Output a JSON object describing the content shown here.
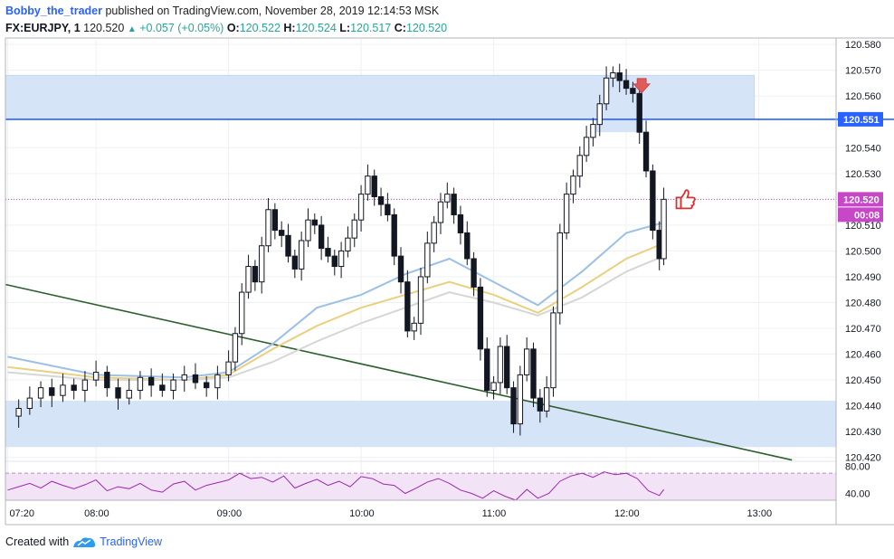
{
  "header": {
    "author": "Bobby_the_trader",
    "published_text": "published on TradingView.com, November 28, 2019 12:14:53 MSK",
    "symbol": "FX:EURJPY, 1",
    "last": "120.520",
    "change": "+0.057 (+0.05%)",
    "o_label": "O:",
    "o_value": "120.522",
    "h_label": "H:",
    "h_value": "120.524",
    "l_label": "L:",
    "l_value": "120.517",
    "c_label": "C:",
    "c_value": "120.520"
  },
  "footer": {
    "created_with": "Created with",
    "brand": "TradingView"
  },
  "chart_data": {
    "type": "candlestick",
    "price_axis": {
      "ticks": [
        "120.580",
        "120.570",
        "120.560",
        "120.551",
        "120.540",
        "120.530",
        "120.520",
        "120.510",
        "120.500",
        "120.490",
        "120.480",
        "120.470",
        "120.460",
        "120.450",
        "120.440",
        "120.430",
        "120.420"
      ],
      "ylim": [
        120.4185,
        120.5825
      ]
    },
    "time_axis": {
      "ticks": [
        "07:20",
        "08:00",
        "09:00",
        "10:00",
        "11:00",
        "12:00",
        "13:00"
      ],
      "tick_minutes": [
        440,
        480,
        540,
        600,
        660,
        720,
        780
      ],
      "xlim_minutes": [
        439,
        815
      ]
    },
    "price_labels": [
      {
        "text": "120.551",
        "color": "#2962ff"
      },
      {
        "text": "120.520",
        "color": "#c846c8"
      },
      {
        "text": "00:08",
        "color": "#c846c8"
      }
    ],
    "zones": [
      {
        "name": "supply",
        "from": 120.551,
        "to": 120.568,
        "color": "#d6e4f8"
      },
      {
        "name": "demand",
        "from": 120.424,
        "to": 120.442,
        "color": "#d6e4f8"
      }
    ],
    "hline": {
      "price": 120.551,
      "color": "#2962ff"
    },
    "current_price": 120.52,
    "trendline": {
      "points": [
        [
          439,
          120.487
        ],
        [
          795,
          120.419
        ]
      ],
      "color": "#2e5e2e"
    },
    "close_series": [
      [
        440,
        120.436
      ],
      [
        445,
        120.439
      ],
      [
        450,
        120.443
      ],
      [
        455,
        120.447
      ],
      [
        460,
        120.444
      ],
      [
        465,
        120.448
      ],
      [
        470,
        120.446
      ],
      [
        475,
        120.45
      ],
      [
        480,
        120.453
      ],
      [
        485,
        120.447
      ],
      [
        490,
        120.443
      ],
      [
        495,
        120.446
      ],
      [
        500,
        120.451
      ],
      [
        505,
        120.448
      ],
      [
        510,
        120.446
      ],
      [
        515,
        120.45
      ],
      [
        520,
        120.452
      ],
      [
        525,
        120.449
      ],
      [
        530,
        120.447
      ],
      [
        535,
        120.452
      ],
      [
        540,
        120.457
      ],
      [
        543,
        120.468
      ],
      [
        546,
        120.484
      ],
      [
        549,
        120.494
      ],
      [
        552,
        120.488
      ],
      [
        555,
        120.502
      ],
      [
        558,
        120.516
      ],
      [
        561,
        120.508
      ],
      [
        564,
        120.506
      ],
      [
        567,
        120.498
      ],
      [
        570,
        120.493
      ],
      [
        573,
        120.504
      ],
      [
        576,
        120.512
      ],
      [
        579,
        120.51
      ],
      [
        582,
        120.501
      ],
      [
        585,
        120.498
      ],
      [
        588,
        120.494
      ],
      [
        591,
        120.5
      ],
      [
        594,
        120.505
      ],
      [
        597,
        120.512
      ],
      [
        600,
        120.522
      ],
      [
        603,
        120.529
      ],
      [
        606,
        120.521
      ],
      [
        609,
        120.518
      ],
      [
        612,
        120.514
      ],
      [
        615,
        120.498
      ],
      [
        618,
        120.488
      ],
      [
        621,
        120.469
      ],
      [
        624,
        120.472
      ],
      [
        627,
        120.49
      ],
      [
        630,
        120.503
      ],
      [
        633,
        120.511
      ],
      [
        636,
        120.519
      ],
      [
        639,
        120.522
      ],
      [
        642,
        120.514
      ],
      [
        645,
        120.507
      ],
      [
        648,
        120.497
      ],
      [
        651,
        120.486
      ],
      [
        654,
        120.462
      ],
      [
        657,
        120.446
      ],
      [
        660,
        120.449
      ],
      [
        663,
        120.463
      ],
      [
        666,
        120.447
      ],
      [
        669,
        120.433
      ],
      [
        672,
        120.452
      ],
      [
        675,
        120.462
      ],
      [
        678,
        120.443
      ],
      [
        681,
        120.438
      ],
      [
        684,
        120.447
      ],
      [
        687,
        120.476
      ],
      [
        690,
        120.507
      ],
      [
        693,
        120.522
      ],
      [
        696,
        120.529
      ],
      [
        699,
        120.537
      ],
      [
        702,
        120.544
      ],
      [
        705,
        120.549
      ],
      [
        708,
        120.557
      ],
      [
        711,
        120.567
      ],
      [
        714,
        120.569
      ],
      [
        717,
        120.566
      ],
      [
        720,
        120.563
      ],
      [
        723,
        120.561
      ],
      [
        726,
        120.546
      ],
      [
        729,
        120.531
      ],
      [
        732,
        120.508
      ],
      [
        735,
        120.497
      ],
      [
        737,
        120.52
      ]
    ],
    "ema_series": [
      {
        "color": "#9cc0e6",
        "values": [
          [
            440,
            120.459
          ],
          [
            480,
            120.452
          ],
          [
            520,
            120.451
          ],
          [
            540,
            120.453
          ],
          [
            560,
            120.464
          ],
          [
            580,
            120.478
          ],
          [
            600,
            120.483
          ],
          [
            620,
            120.491
          ],
          [
            640,
            120.497
          ],
          [
            660,
            120.488
          ],
          [
            680,
            120.479
          ],
          [
            700,
            120.492
          ],
          [
            720,
            120.507
          ],
          [
            737,
            120.511
          ]
        ]
      },
      {
        "color": "#ead07e",
        "values": [
          [
            440,
            120.455
          ],
          [
            480,
            120.451
          ],
          [
            520,
            120.45
          ],
          [
            540,
            120.452
          ],
          [
            560,
            120.462
          ],
          [
            580,
            120.471
          ],
          [
            600,
            120.478
          ],
          [
            620,
            120.483
          ],
          [
            640,
            120.488
          ],
          [
            660,
            120.483
          ],
          [
            680,
            120.476
          ],
          [
            700,
            120.486
          ],
          [
            720,
            120.497
          ],
          [
            737,
            120.503
          ]
        ]
      },
      {
        "color": "#d6d6d6",
        "values": [
          [
            440,
            120.453
          ],
          [
            480,
            120.45
          ],
          [
            520,
            120.45
          ],
          [
            540,
            120.451
          ],
          [
            560,
            120.457
          ],
          [
            580,
            120.465
          ],
          [
            600,
            120.472
          ],
          [
            620,
            120.478
          ],
          [
            640,
            120.484
          ],
          [
            660,
            120.48
          ],
          [
            680,
            120.475
          ],
          [
            700,
            120.482
          ],
          [
            720,
            120.492
          ],
          [
            737,
            120.498
          ]
        ]
      }
    ],
    "rsi": {
      "ticks": [
        "80.00",
        "40.00"
      ],
      "upper": 70,
      "lower": 30,
      "series_color": "#9c27b0",
      "values": [
        [
          440,
          45
        ],
        [
          445,
          50
        ],
        [
          450,
          55
        ],
        [
          455,
          48
        ],
        [
          460,
          58
        ],
        [
          465,
          52
        ],
        [
          470,
          47
        ],
        [
          475,
          53
        ],
        [
          480,
          60
        ],
        [
          485,
          44
        ],
        [
          490,
          50
        ],
        [
          495,
          47
        ],
        [
          500,
          55
        ],
        [
          505,
          45
        ],
        [
          510,
          42
        ],
        [
          515,
          54
        ],
        [
          520,
          58
        ],
        [
          525,
          45
        ],
        [
          530,
          52
        ],
        [
          535,
          56
        ],
        [
          540,
          60
        ],
        [
          545,
          70
        ],
        [
          550,
          62
        ],
        [
          555,
          64
        ],
        [
          560,
          57
        ],
        [
          565,
          66
        ],
        [
          570,
          48
        ],
        [
          575,
          55
        ],
        [
          580,
          61
        ],
        [
          585,
          52
        ],
        [
          590,
          58
        ],
        [
          595,
          50
        ],
        [
          600,
          65
        ],
        [
          605,
          62
        ],
        [
          610,
          54
        ],
        [
          615,
          52
        ],
        [
          620,
          40
        ],
        [
          625,
          48
        ],
        [
          630,
          57
        ],
        [
          635,
          62
        ],
        [
          640,
          55
        ],
        [
          645,
          45
        ],
        [
          650,
          40
        ],
        [
          655,
          33
        ],
        [
          660,
          44
        ],
        [
          665,
          36
        ],
        [
          670,
          30
        ],
        [
          675,
          46
        ],
        [
          680,
          33
        ],
        [
          685,
          40
        ],
        [
          690,
          58
        ],
        [
          695,
          66
        ],
        [
          700,
          70
        ],
        [
          705,
          64
        ],
        [
          710,
          72
        ],
        [
          715,
          68
        ],
        [
          720,
          70
        ],
        [
          725,
          62
        ],
        [
          730,
          44
        ],
        [
          735,
          37
        ],
        [
          737,
          46
        ]
      ]
    },
    "markers": [
      {
        "name": "sell-arrow",
        "time": 727,
        "price": 120.564,
        "color": "#e05a5a"
      },
      {
        "name": "thumbs-up",
        "time": 746,
        "price": 120.52,
        "color": "#d93030"
      }
    ]
  }
}
